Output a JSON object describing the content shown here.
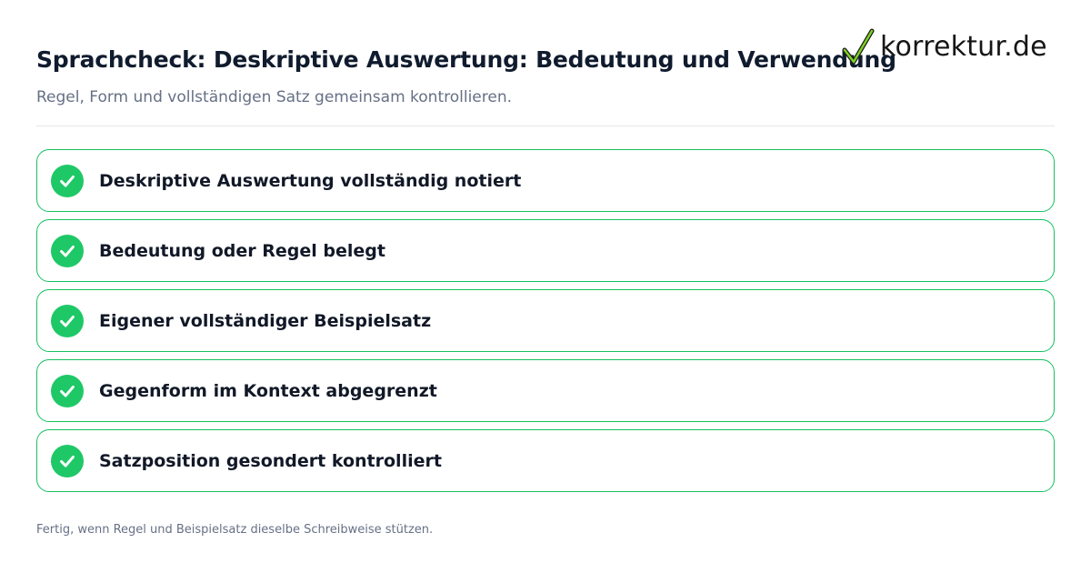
{
  "header": {
    "title": "Sprachcheck: Deskriptive Auswertung: Bedeutung und Verwendung",
    "subtitle": "Regel, Form und vollständigen Satz gemeinsam kontrollieren."
  },
  "logo": {
    "text": "korrektur.de",
    "icon": "check-mark-icon"
  },
  "checklist": {
    "items": [
      {
        "label": "Deskriptive Auswertung vollständig notiert",
        "checked": true,
        "icon": "check-circle-icon"
      },
      {
        "label": "Bedeutung oder Regel belegt",
        "checked": true,
        "icon": "check-circle-icon"
      },
      {
        "label": "Eigener vollständiger Beispielsatz",
        "checked": true,
        "icon": "check-circle-icon"
      },
      {
        "label": "Gegenform im Kontext abgegrenzt",
        "checked": true,
        "icon": "check-circle-icon"
      },
      {
        "label": "Satzposition gesondert kontrolliert",
        "checked": true,
        "icon": "check-circle-icon"
      }
    ]
  },
  "footer": {
    "note": "Fertig, wenn Regel und Beispielsatz dieselbe Schreibweise stützen."
  },
  "colors": {
    "accent_green": "#1ec867",
    "border_green": "#16c060",
    "title": "#101b2e",
    "muted": "#667085",
    "divider": "#e5e7eb"
  }
}
